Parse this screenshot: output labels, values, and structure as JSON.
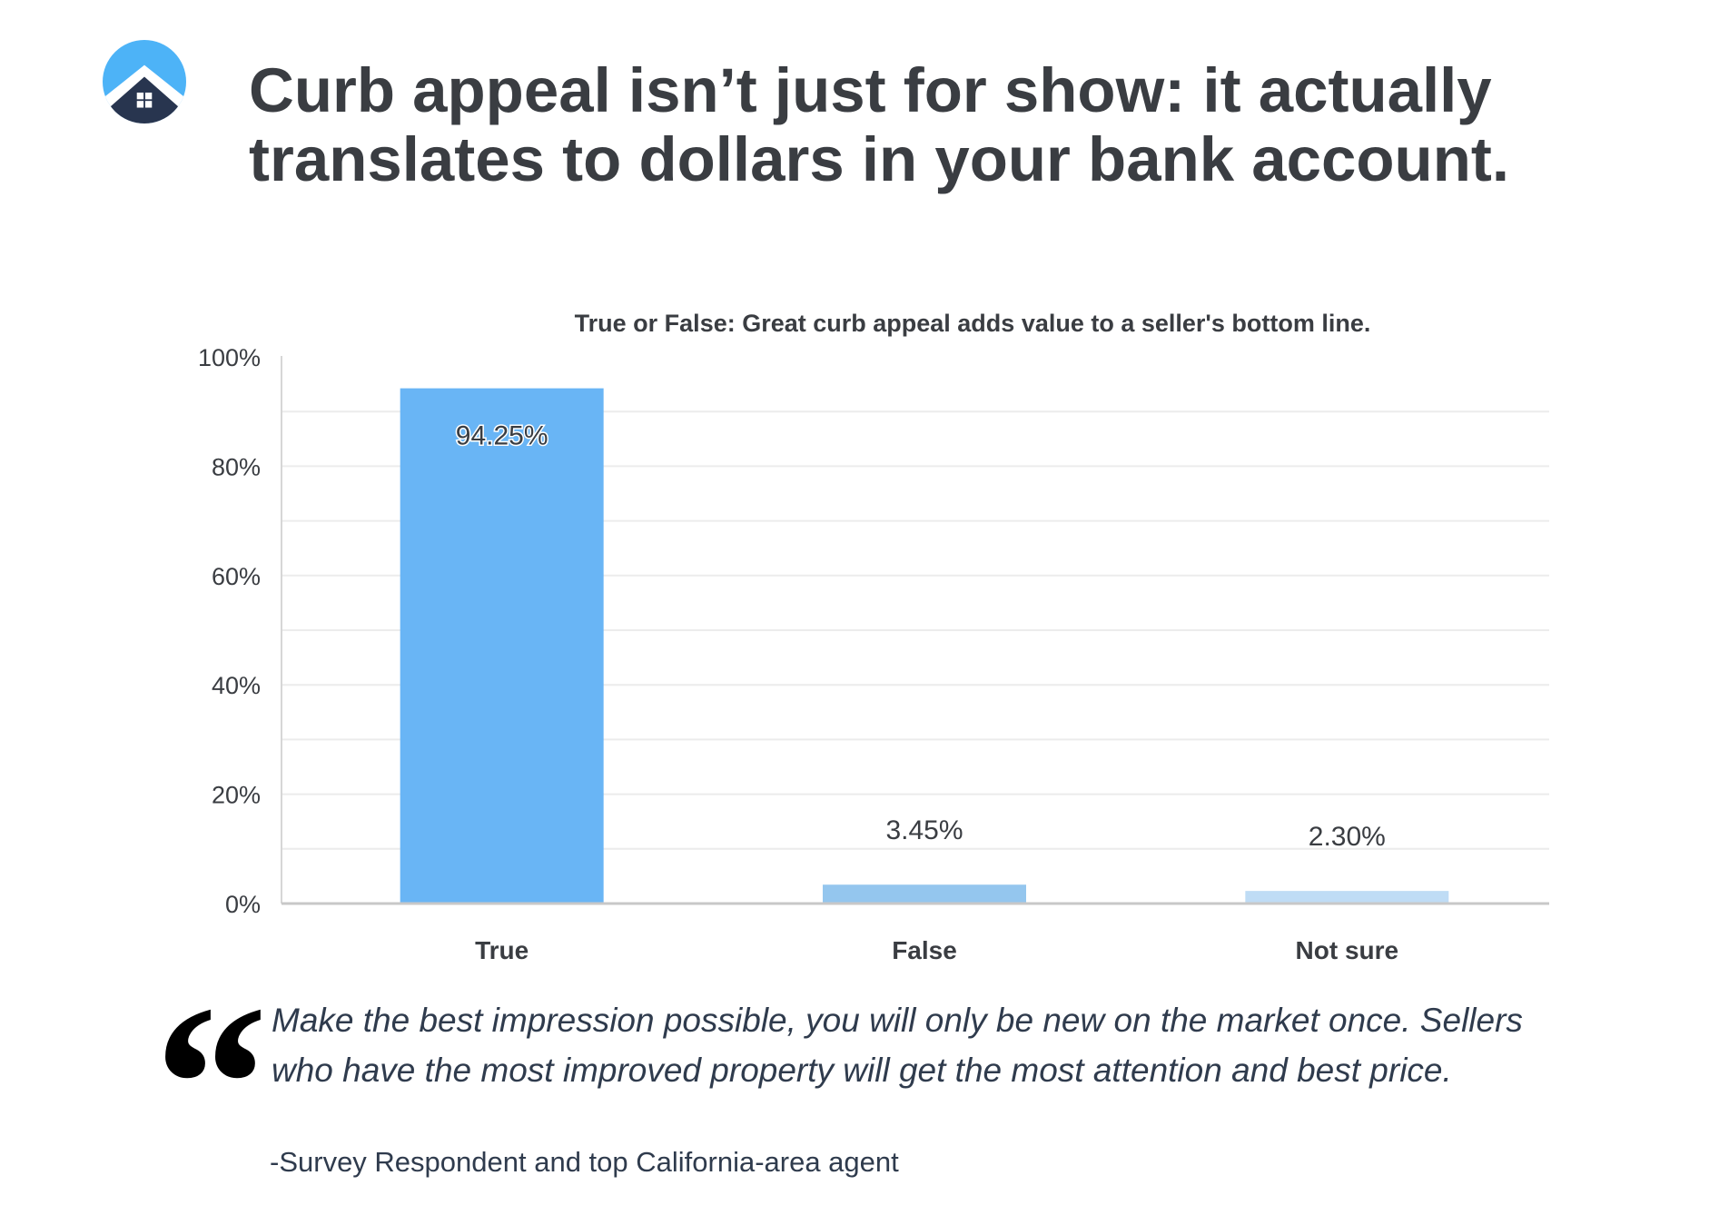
{
  "header": {
    "logo_icon": "house-in-circle-logo",
    "title_lines": [
      "Curb appeal isn’t just for show: it actually",
      "translates to dollars in your bank account."
    ]
  },
  "chart_data": {
    "type": "bar",
    "title": "True or False: Great curb appeal adds value to a seller's bottom line.",
    "categories": [
      "True",
      "False",
      "Not sure"
    ],
    "values": [
      94.25,
      3.45,
      2.3
    ],
    "data_labels": [
      "94.25%",
      "3.45%",
      "2.30%"
    ],
    "colors": [
      "#69b5f5",
      "#94c6ee",
      "#bfdcf5"
    ],
    "ylim": [
      0,
      100
    ],
    "yticks": [
      0,
      20,
      40,
      60,
      80,
      100
    ],
    "ytick_labels": [
      "0%",
      "20%",
      "40%",
      "60%",
      "80%",
      "100%"
    ],
    "grid": true,
    "minor_grid_step": 10,
    "xlabel": "",
    "ylabel": ""
  },
  "quote": {
    "icon": "quotation-mark-icon",
    "mark": "“",
    "text": "Make the best impression possible, you will only be new on the market once. Sellers who have the most improved property will get the most attention and best price.",
    "attribution": "-Survey Respondent and top California-area agent"
  }
}
